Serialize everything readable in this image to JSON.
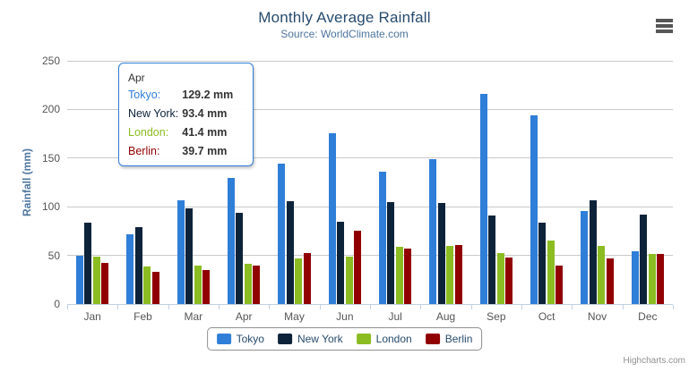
{
  "chart_data": {
    "type": "bar",
    "title": "Monthly Average Rainfall",
    "subtitle": "Source: WorldClimate.com",
    "xlabel": "",
    "ylabel": "Rainfall (mm)",
    "ylim": [
      0,
      250
    ],
    "ytick_step": 50,
    "grid": true,
    "legend_position": "bottom",
    "categories": [
      "Jan",
      "Feb",
      "Mar",
      "Apr",
      "May",
      "Jun",
      "Jul",
      "Aug",
      "Sep",
      "Oct",
      "Nov",
      "Dec"
    ],
    "series": [
      {
        "name": "Tokyo",
        "color": "#2f7ed8",
        "values": [
          49.9,
          71.5,
          106.4,
          129.2,
          144.0,
          176.0,
          135.6,
          148.5,
          216.4,
          194.1,
          95.6,
          54.4
        ]
      },
      {
        "name": "New York",
        "color": "#0d233a",
        "values": [
          83.6,
          78.8,
          98.5,
          93.4,
          106.0,
          84.5,
          105.0,
          104.3,
          91.2,
          83.5,
          106.6,
          92.3
        ]
      },
      {
        "name": "London",
        "color": "#8bbc21",
        "values": [
          48.9,
          38.8,
          39.3,
          41.4,
          47.0,
          48.3,
          59.0,
          59.6,
          52.4,
          65.2,
          59.3,
          51.2
        ]
      },
      {
        "name": "Berlin",
        "color": "#910000",
        "values": [
          42.4,
          33.2,
          34.5,
          39.7,
          52.6,
          75.5,
          57.4,
          60.4,
          47.6,
          39.1,
          46.8,
          51.1
        ]
      }
    ]
  },
  "tooltip": {
    "header": "Apr",
    "border_color": "#2f7ed8",
    "rows": [
      {
        "label": "Tokyo:",
        "value": "129.2 mm",
        "color": "#2f7ed8"
      },
      {
        "label": "New York:",
        "value": "93.4 mm",
        "color": "#0d233a"
      },
      {
        "label": "London:",
        "value": "41.4 mm",
        "color": "#8bbc21"
      },
      {
        "label": "Berlin:",
        "value": "39.7 mm",
        "color": "#910000"
      }
    ]
  },
  "icons": {
    "export_menu": "hamburger-icon"
  },
  "credits": "Highcharts.com"
}
